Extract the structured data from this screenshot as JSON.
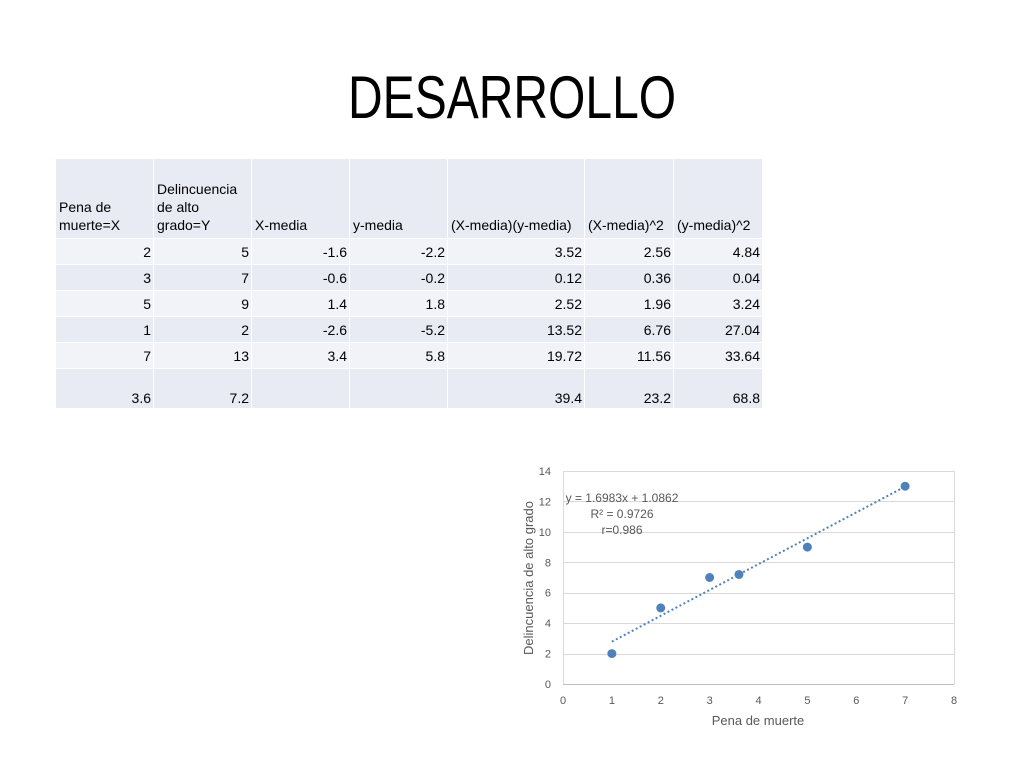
{
  "slide": {
    "title": "DESARROLLO"
  },
  "table": {
    "headers": [
      "Pena de muerte=X",
      "Delincuencia de alto grado=Y",
      "X-media",
      "y-media",
      "(X-media)(y-media)",
      "(X-media)^2",
      "(y-media)^2"
    ],
    "rows": [
      [
        "2",
        "5",
        "-1.6",
        "-2.2",
        "3.52",
        "2.56",
        "4.84"
      ],
      [
        "3",
        "7",
        "-0.6",
        "-0.2",
        "0.12",
        "0.36",
        "0.04"
      ],
      [
        "5",
        "9",
        "1.4",
        "1.8",
        "2.52",
        "1.96",
        "3.24"
      ],
      [
        "1",
        "2",
        "-2.6",
        "-5.2",
        "13.52",
        "6.76",
        "27.04"
      ],
      [
        "7",
        "13",
        "3.4",
        "5.8",
        "19.72",
        "11.56",
        "33.64"
      ]
    ],
    "totals": [
      "3.6",
      "7.2",
      "",
      "",
      "39.4",
      "23.2",
      "68.8"
    ]
  },
  "colors": {
    "header_fill": "#e8ebf4",
    "row_fill_light": "#f1f3f8",
    "row_fill_dark": "#e8ebf4"
  },
  "chart_data": {
    "type": "scatter",
    "xlabel": "Pena de muerte",
    "ylabel": "Delincuencia de alto grado",
    "xlim": [
      0,
      8
    ],
    "ylim": [
      0,
      14
    ],
    "xticks": [
      0,
      1,
      2,
      3,
      4,
      5,
      6,
      7,
      8
    ],
    "yticks": [
      0,
      2,
      4,
      6,
      8,
      10,
      12,
      14
    ],
    "grid": "horizontal",
    "legend": "none",
    "series": [
      {
        "x": [
          2,
          3,
          5,
          1,
          7,
          3.6
        ],
        "y": [
          5,
          7,
          9,
          2,
          13,
          7.2
        ],
        "color": "#4f81bd"
      }
    ],
    "trendline": {
      "type": "linear",
      "color": "#4f81bd",
      "slope": 1.6983,
      "intercept": 1.0862,
      "x_range": [
        1,
        7
      ],
      "labels": [
        "y = 1.6983x + 1.0862",
        "R² = 0.9726",
        "r=0.986"
      ]
    }
  }
}
